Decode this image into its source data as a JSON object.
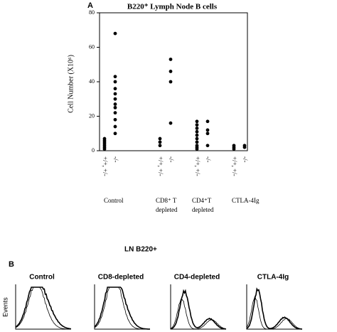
{
  "chart_data": {
    "type": "strip",
    "panel_label": "A",
    "title": "B220⁺ Lymph Node B cells",
    "y_label": "Cell Number (X10⁶)",
    "ylim": [
      0,
      80
    ],
    "yticks": [
      0,
      20,
      40,
      60,
      80
    ],
    "color": "#000000",
    "groups": [
      {
        "name": [
          "Control"
        ],
        "columns": [
          {
            "label": "+/+, +/-",
            "values": [
              1,
              2,
              3,
              4,
              5,
              6,
              7
            ]
          },
          {
            "label": "-/-",
            "values": [
              68,
              43,
              40,
              36,
              33,
              30,
              27,
              25,
              22,
              18,
              14,
              10
            ]
          }
        ]
      },
      {
        "name": [
          "CD8⁺ T",
          "depleted"
        ],
        "columns": [
          {
            "label": "+/+, +/-",
            "values": [
              3,
              5,
              7
            ]
          },
          {
            "label": "-/-",
            "values": [
              53,
              46,
              40,
              16
            ]
          }
        ]
      },
      {
        "name": [
          "CD4⁺T",
          "depleted"
        ],
        "columns": [
          {
            "label": "+/+, +/-",
            "values": [
              17,
              15,
              13,
              11,
              9,
              7,
              5,
              3,
              2,
              1
            ]
          },
          {
            "label": "-/-",
            "values": [
              17,
              12,
              10,
              3
            ]
          }
        ]
      },
      {
        "name": [
          "CTLA-4Ig"
        ],
        "columns": [
          {
            "label": "+/+, +/-",
            "values": [
              1,
              2,
              3
            ]
          },
          {
            "label": "-/-",
            "values": [
              2,
              3
            ]
          }
        ]
      }
    ]
  },
  "panel_b": {
    "label": "B",
    "title": "LN B220+",
    "y_label": "Events",
    "histograms": [
      "Control",
      "CD8-depleted",
      "CD4-depleted",
      "CTLA-4Ig"
    ]
  }
}
